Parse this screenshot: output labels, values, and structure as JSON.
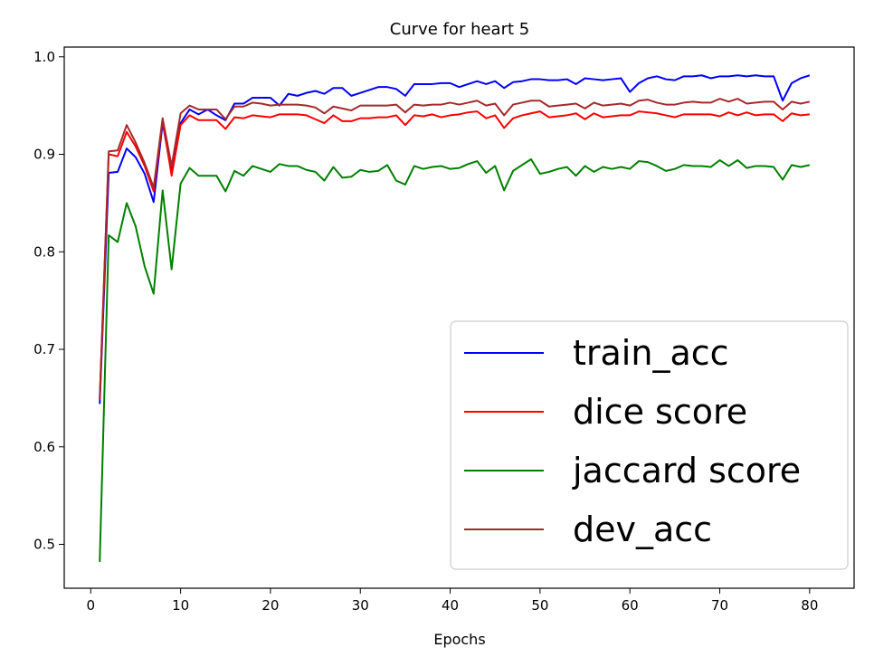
{
  "chart_data": {
    "type": "line",
    "title": "Curve for heart 5",
    "xlabel": "Epochs",
    "ylabel": "",
    "xlim": [
      -2.95,
      84.95
    ],
    "ylim": [
      0.455,
      1.01
    ],
    "xticks": [
      0,
      10,
      20,
      30,
      40,
      50,
      60,
      70,
      80
    ],
    "yticks": [
      0.5,
      0.6,
      0.7,
      0.8,
      0.9,
      1.0
    ],
    "ytick_labels": [
      "0.5",
      "0.6",
      "0.7",
      "0.8",
      "0.9",
      "1.0"
    ],
    "grid": false,
    "legend_position": "lower-right",
    "x": [
      1,
      2,
      3,
      4,
      5,
      6,
      7,
      8,
      9,
      10,
      11,
      12,
      13,
      14,
      15,
      16,
      17,
      18,
      19,
      20,
      21,
      22,
      23,
      24,
      25,
      26,
      27,
      28,
      29,
      30,
      31,
      32,
      33,
      34,
      35,
      36,
      37,
      38,
      39,
      40,
      41,
      42,
      43,
      44,
      45,
      46,
      47,
      48,
      49,
      50,
      51,
      52,
      53,
      54,
      55,
      56,
      57,
      58,
      59,
      60,
      61,
      62,
      63,
      64,
      65,
      66,
      67,
      68,
      69,
      70,
      71,
      72,
      73,
      74,
      75,
      76,
      77,
      78,
      79,
      80
    ],
    "series": [
      {
        "name": "train_acc",
        "color": "#0000ff",
        "values": [
          0.644,
          0.881,
          0.882,
          0.906,
          0.897,
          0.88,
          0.851,
          0.932,
          0.882,
          0.932,
          0.946,
          0.941,
          0.946,
          0.94,
          0.935,
          0.952,
          0.952,
          0.958,
          0.958,
          0.958,
          0.95,
          0.962,
          0.96,
          0.963,
          0.965,
          0.962,
          0.968,
          0.968,
          0.96,
          0.963,
          0.966,
          0.969,
          0.969,
          0.967,
          0.96,
          0.972,
          0.972,
          0.972,
          0.973,
          0.973,
          0.969,
          0.972,
          0.975,
          0.972,
          0.975,
          0.968,
          0.974,
          0.975,
          0.977,
          0.977,
          0.976,
          0.976,
          0.977,
          0.972,
          0.978,
          0.977,
          0.976,
          0.977,
          0.978,
          0.964,
          0.973,
          0.978,
          0.98,
          0.977,
          0.976,
          0.98,
          0.98,
          0.981,
          0.978,
          0.98,
          0.98,
          0.981,
          0.98,
          0.981,
          0.98,
          0.98,
          0.955,
          0.973,
          0.978,
          0.981
        ]
      },
      {
        "name": "dice score",
        "color": "#ff0000",
        "values": [
          0.648,
          0.9,
          0.898,
          0.923,
          0.908,
          0.888,
          0.862,
          0.935,
          0.878,
          0.93,
          0.94,
          0.935,
          0.935,
          0.935,
          0.926,
          0.938,
          0.937,
          0.94,
          0.939,
          0.938,
          0.941,
          0.941,
          0.941,
          0.94,
          0.936,
          0.932,
          0.94,
          0.934,
          0.934,
          0.937,
          0.937,
          0.938,
          0.938,
          0.94,
          0.93,
          0.94,
          0.939,
          0.941,
          0.938,
          0.94,
          0.941,
          0.943,
          0.944,
          0.937,
          0.94,
          0.927,
          0.937,
          0.94,
          0.942,
          0.944,
          0.938,
          0.939,
          0.94,
          0.942,
          0.936,
          0.942,
          0.938,
          0.939,
          0.94,
          0.94,
          0.944,
          0.943,
          0.942,
          0.94,
          0.938,
          0.941,
          0.941,
          0.941,
          0.941,
          0.939,
          0.943,
          0.94,
          0.943,
          0.94,
          0.941,
          0.941,
          0.934,
          0.942,
          0.94,
          0.941
        ]
      },
      {
        "name": "jaccard score",
        "color": "#008000",
        "values": [
          0.482,
          0.817,
          0.81,
          0.85,
          0.826,
          0.785,
          0.757,
          0.863,
          0.782,
          0.87,
          0.886,
          0.878,
          0.878,
          0.878,
          0.862,
          0.883,
          0.878,
          0.888,
          0.885,
          0.882,
          0.89,
          0.888,
          0.888,
          0.884,
          0.882,
          0.873,
          0.887,
          0.876,
          0.877,
          0.884,
          0.882,
          0.883,
          0.889,
          0.873,
          0.869,
          0.888,
          0.885,
          0.887,
          0.888,
          0.885,
          0.886,
          0.89,
          0.893,
          0.881,
          0.888,
          0.863,
          0.883,
          0.889,
          0.895,
          0.88,
          0.882,
          0.885,
          0.887,
          0.878,
          0.888,
          0.882,
          0.887,
          0.885,
          0.887,
          0.885,
          0.893,
          0.892,
          0.888,
          0.883,
          0.885,
          0.889,
          0.888,
          0.888,
          0.887,
          0.894,
          0.888,
          0.894,
          0.886,
          0.888,
          0.888,
          0.887,
          0.874,
          0.889,
          0.887,
          0.889
        ]
      },
      {
        "name": "dev_acc",
        "color": "#a52a2a",
        "values": [
          0.65,
          0.903,
          0.904,
          0.93,
          0.912,
          0.891,
          0.866,
          0.937,
          0.888,
          0.942,
          0.95,
          0.946,
          0.946,
          0.946,
          0.936,
          0.949,
          0.949,
          0.953,
          0.952,
          0.95,
          0.951,
          0.951,
          0.951,
          0.95,
          0.948,
          0.942,
          0.949,
          0.947,
          0.945,
          0.95,
          0.95,
          0.95,
          0.95,
          0.951,
          0.943,
          0.951,
          0.95,
          0.951,
          0.951,
          0.953,
          0.951,
          0.953,
          0.955,
          0.95,
          0.952,
          0.94,
          0.951,
          0.953,
          0.955,
          0.955,
          0.949,
          0.95,
          0.951,
          0.952,
          0.947,
          0.953,
          0.95,
          0.951,
          0.952,
          0.95,
          0.955,
          0.956,
          0.953,
          0.951,
          0.951,
          0.953,
          0.954,
          0.953,
          0.953,
          0.957,
          0.954,
          0.957,
          0.952,
          0.953,
          0.954,
          0.954,
          0.946,
          0.954,
          0.952,
          0.954
        ]
      }
    ]
  }
}
